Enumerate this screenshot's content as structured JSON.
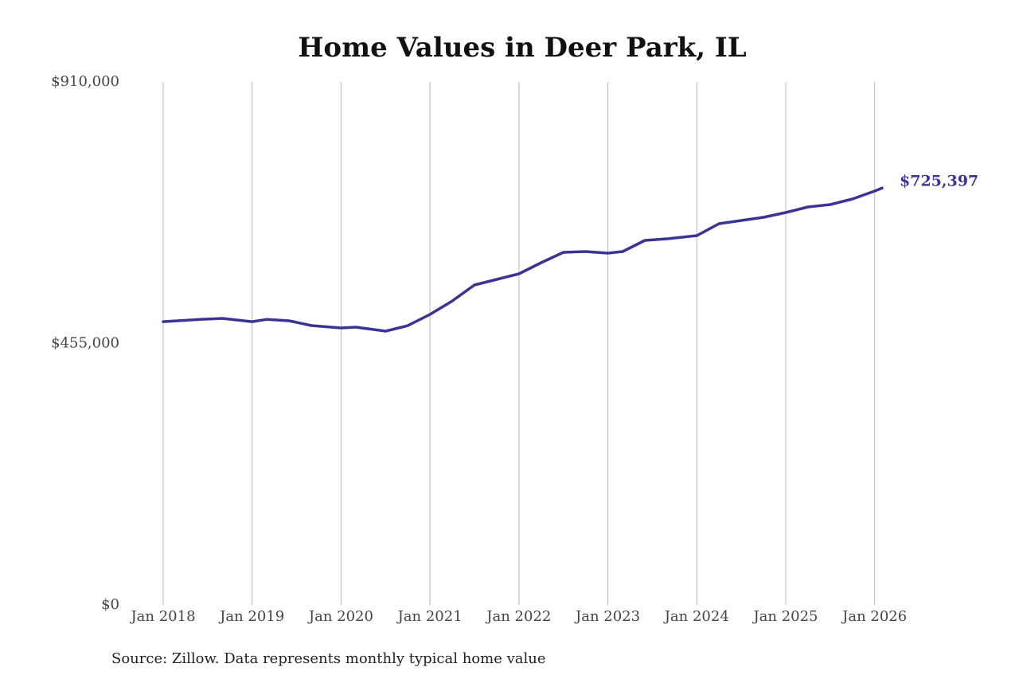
{
  "chart_data": {
    "type": "line",
    "title": "Home Values in Deer Park, IL",
    "source": "Source: Zillow. Data represents monthly typical home value",
    "x": [
      "2018-01",
      "2018-06",
      "2018-09",
      "2019-01",
      "2019-03",
      "2019-06",
      "2019-09",
      "2020-01",
      "2020-03",
      "2020-07",
      "2020-10",
      "2021-01",
      "2021-04",
      "2021-07",
      "2021-10",
      "2022-01",
      "2022-04",
      "2022-07",
      "2022-10",
      "2023-01",
      "2023-03",
      "2023-06",
      "2023-09",
      "2024-01",
      "2024-04",
      "2024-07",
      "2024-10",
      "2025-01",
      "2025-04",
      "2025-07",
      "2025-10",
      "2026-01",
      "2026-02"
    ],
    "series": [
      {
        "name": "Typical home value",
        "color": "#3b3494",
        "values": [
          493000,
          497000,
          498600,
          493000,
          497000,
          494500,
          486200,
          482000,
          483400,
          476500,
          486000,
          505500,
          529000,
          556800,
          566500,
          576200,
          595600,
          613600,
          615000,
          612200,
          615000,
          634400,
          637100,
          642700,
          663400,
          669000,
          674500,
          682800,
          692500,
          696700,
          706400,
          720200,
          725397
        ],
        "value_labels": [
          null,
          null,
          null,
          null,
          null,
          null,
          null,
          null,
          null,
          null,
          null,
          null,
          null,
          null,
          null,
          null,
          null,
          null,
          null,
          null,
          null,
          null,
          null,
          null,
          null,
          null,
          null,
          null,
          null,
          null,
          null,
          null,
          "$725,397"
        ]
      }
    ],
    "xlim": [
      "2018-01",
      "2026-02"
    ],
    "xticks": [
      {
        "value": "2018-01",
        "label": "Jan 2018"
      },
      {
        "value": "2019-01",
        "label": "Jan 2019"
      },
      {
        "value": "2020-01",
        "label": "Jan 2020"
      },
      {
        "value": "2021-01",
        "label": "Jan 2021"
      },
      {
        "value": "2022-01",
        "label": "Jan 2022"
      },
      {
        "value": "2023-01",
        "label": "Jan 2023"
      },
      {
        "value": "2024-01",
        "label": "Jan 2024"
      },
      {
        "value": "2025-01",
        "label": "Jan 2025"
      },
      {
        "value": "2026-01",
        "label": "Jan 2026"
      }
    ],
    "ylim": [
      0,
      910000
    ],
    "yticks": [
      {
        "value": 0,
        "label": "$0"
      },
      {
        "value": 455000,
        "label": "$455,000"
      },
      {
        "value": 910000,
        "label": "$910,000"
      }
    ],
    "grid": "x"
  }
}
